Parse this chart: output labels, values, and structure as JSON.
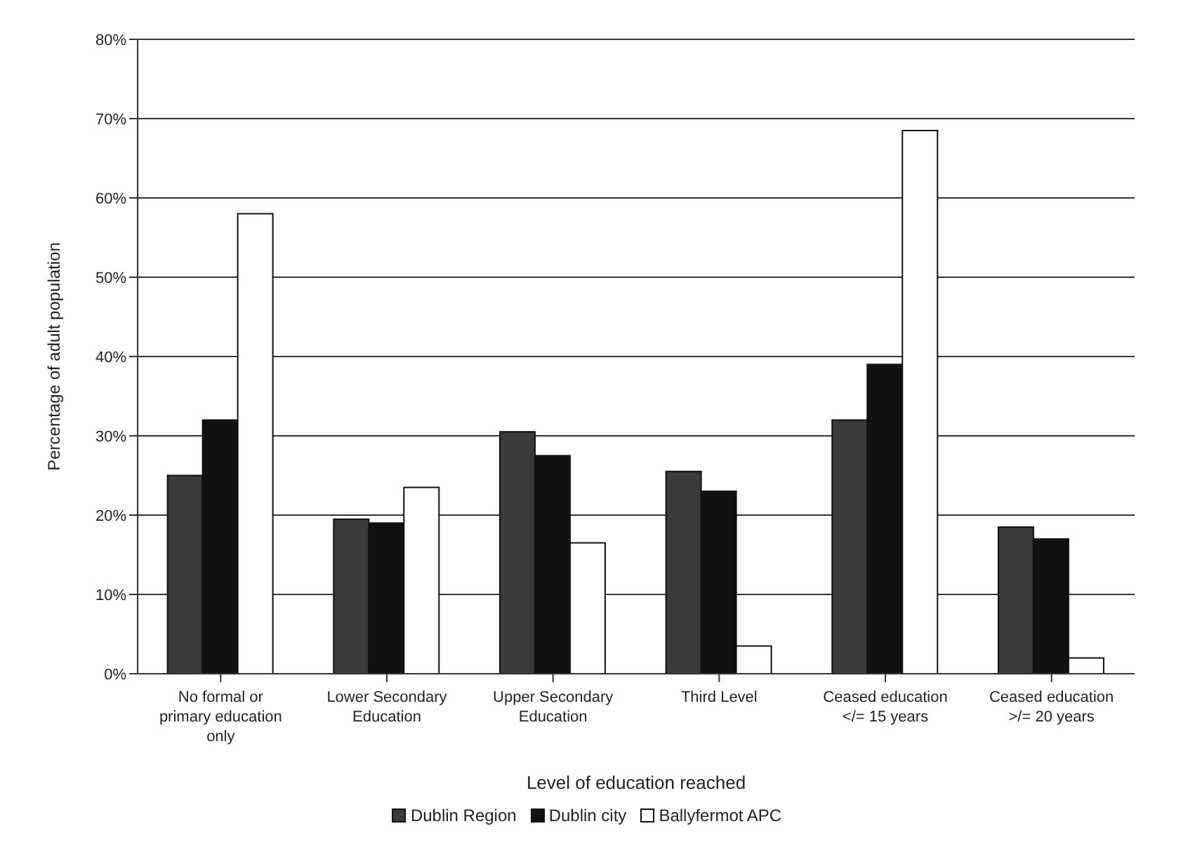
{
  "chart_data": {
    "type": "bar",
    "xlabel": "Level of education reached",
    "ylabel": "Percentage of adult population",
    "categories": [
      "No formal or primary education only",
      "Lower Secondary Education",
      "Upper Secondary Education",
      "Third Level",
      "Ceased education </= 15 years",
      "Ceased education >/= 20 years"
    ],
    "series": [
      {
        "name": "Dublin Region",
        "color": "#3a3a3a",
        "values": [
          25,
          19.5,
          30.5,
          25.5,
          32,
          18.5
        ]
      },
      {
        "name": "Dublin city",
        "color": "#111111",
        "values": [
          32,
          19,
          27.5,
          23,
          39,
          17
        ]
      },
      {
        "name": "Ballyfermot APC",
        "color": "#ffffff",
        "values": [
          58,
          23.5,
          16.5,
          3.5,
          68.5,
          2
        ]
      }
    ],
    "ylim": [
      0,
      80
    ],
    "yticks": [
      {
        "value": 0,
        "label": "0%"
      },
      {
        "value": 10,
        "label": "10%"
      },
      {
        "value": 20,
        "label": "20%"
      },
      {
        "value": 30,
        "label": "30%"
      },
      {
        "value": 40,
        "label": "40%"
      },
      {
        "value": 50,
        "label": "50%"
      },
      {
        "value": 60,
        "label": "60%"
      },
      {
        "value": 70,
        "label": "70%"
      },
      {
        "value": 80,
        "label": "80%"
      }
    ],
    "grid": "y",
    "legend": "bottom"
  }
}
